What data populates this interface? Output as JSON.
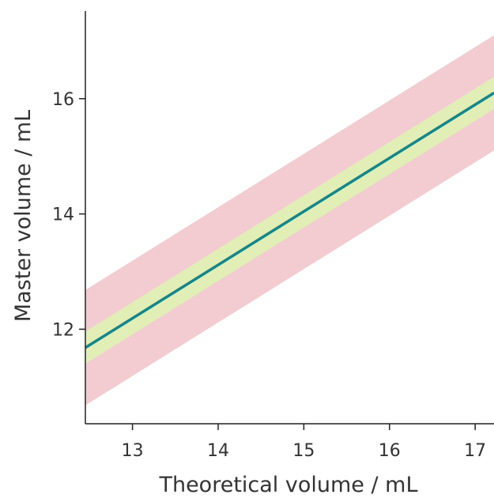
{
  "chart_data": {
    "type": "line",
    "xlabel": "Theoretical volume / mL",
    "ylabel": "Master volume / mL",
    "xlim": [
      12.45,
      17.22
    ],
    "ylim": [
      10.36,
      17.52
    ],
    "x_ticks": [
      13,
      14,
      15,
      16,
      17
    ],
    "y_ticks": [
      12,
      14,
      16
    ],
    "grid": false,
    "legend": "none",
    "series": [
      {
        "x": [
          12.45,
          17.22
        ],
        "y": [
          11.68,
          16.1
        ],
        "color": "#13868a"
      }
    ],
    "bands": [
      {
        "lower_offset": -1.0,
        "upper_offset": 1.0,
        "color": "#f2ccd0"
      },
      {
        "lower_offset": -0.28,
        "upper_offset": 0.28,
        "color": "#e1eeb6"
      }
    ]
  }
}
